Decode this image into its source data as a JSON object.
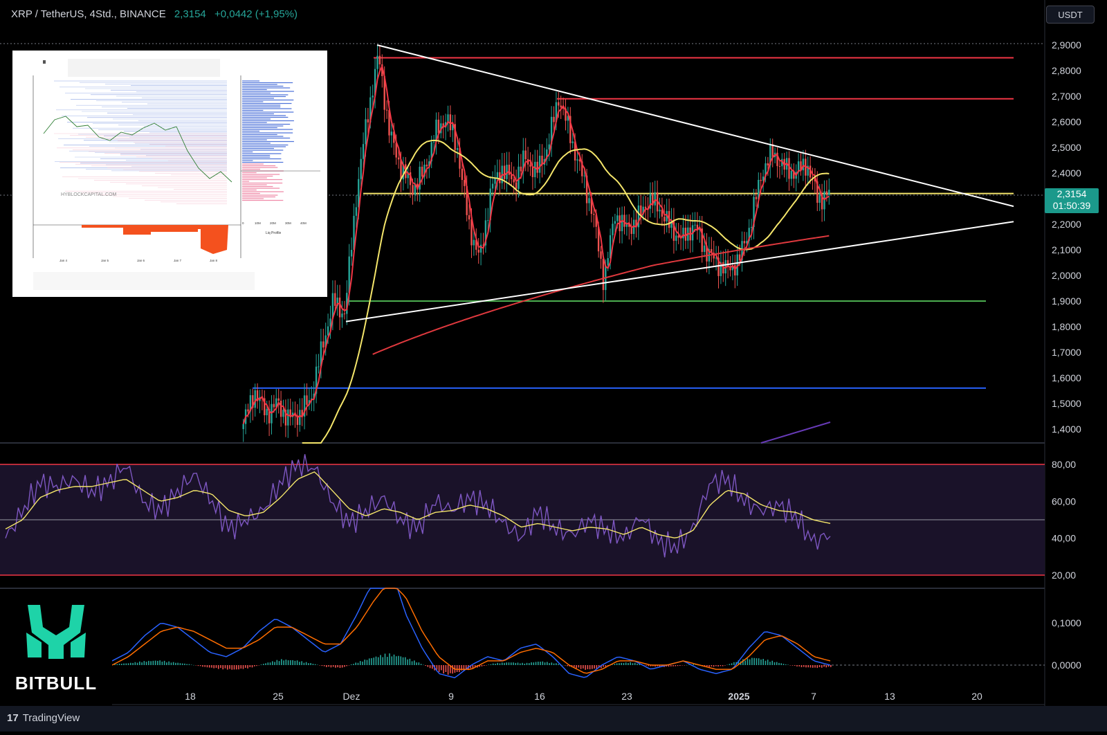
{
  "header": {
    "symbol": "XRP / TetherUS, 4Std., BINANCE",
    "price": "2,3154",
    "change": "+0,0442 (+1,95%)"
  },
  "currency_button": "USDT",
  "last_price_box": {
    "price": "2,3154",
    "countdown": "01:50:39"
  },
  "watermark_logo": {
    "text": "BITBULL",
    "colors": {
      "mark": "#1ed3a8",
      "text": "#ffffff"
    }
  },
  "footer": {
    "brand_glyph": "17",
    "brand": "TradingView"
  },
  "colors": {
    "up": "#26a69a",
    "down": "#ef5350",
    "ma_short": "#f23645",
    "ma_long": "#f5e66b",
    "ma_200": "#e0393e",
    "resistance": "#f23645",
    "support_green": "#4caf50",
    "support_blue": "#2962ff",
    "trendline": "#ffffff",
    "rsi": "#7e57c2",
    "rsi_ma": "#f5e66b",
    "macd": "#2962ff",
    "signal": "#ff6d00"
  },
  "chart_data": [
    {
      "type": "line",
      "panel": "price",
      "x_tick_labels": [
        "18",
        "25",
        "Dez",
        "9",
        "16",
        "23",
        "2025",
        "7",
        "13",
        "20"
      ],
      "y_ticks": [
        "2,9000",
        "2,8000",
        "2,7000",
        "2,6000",
        "2,5000",
        "2,4000",
        "2,2000",
        "2,1000",
        "2,0000",
        "1,9000",
        "1,8000",
        "1,7000",
        "1,6000",
        "1,5000",
        "1,4000"
      ],
      "ylim": [
        1.36,
        2.95
      ],
      "candles_close": [
        1.42,
        1.55,
        1.46,
        1.5,
        1.44,
        1.46,
        1.52,
        1.72,
        1.9,
        1.85,
        2.3,
        2.62,
        2.86,
        2.55,
        2.42,
        2.34,
        2.4,
        2.55,
        2.62,
        2.5,
        2.2,
        2.06,
        2.34,
        2.42,
        2.36,
        2.46,
        2.4,
        2.5,
        2.7,
        2.55,
        2.4,
        2.25,
        1.98,
        2.24,
        2.18,
        2.22,
        2.3,
        2.26,
        2.18,
        2.14,
        2.2,
        2.1,
        2.05,
        2.02,
        2.06,
        2.2,
        2.4,
        2.48,
        2.42,
        2.4,
        2.44,
        2.3,
        2.3154
      ],
      "horizontal_levels": [
        {
          "value": 2.85,
          "color": "red"
        },
        {
          "value": 2.69,
          "color": "red"
        },
        {
          "value": 2.32,
          "color": "yellow"
        },
        {
          "value": 1.9,
          "color": "green"
        },
        {
          "value": 1.56,
          "color": "blue"
        }
      ],
      "trendlines": [
        {
          "from": [
            "Dez 3",
            2.9
          ],
          "to": [
            "Jan 20",
            2.27
          ]
        },
        {
          "from": [
            "Nov 30",
            1.82
          ],
          "to": [
            "Jan 20",
            2.21
          ]
        }
      ]
    },
    {
      "type": "line",
      "panel": "rsi",
      "y_ticks": [
        "80,00",
        "60,00",
        "40,00",
        "20,00"
      ],
      "ylim": [
        15,
        90
      ],
      "overbought": 80,
      "oversold": 20,
      "midline": 50,
      "rsi": [
        40,
        55,
        70,
        68,
        72,
        65,
        70,
        80,
        60,
        55,
        65,
        75,
        60,
        45,
        50,
        55,
        70,
        80,
        78,
        60,
        48,
        55,
        62,
        50,
        45,
        60,
        55,
        62,
        58,
        48,
        40,
        55,
        45,
        42,
        50,
        44,
        40,
        52,
        38,
        35,
        45,
        70,
        72,
        60,
        55,
        58,
        52,
        38,
        42
      ],
      "rsi_ma": [
        45,
        50,
        62,
        66,
        68,
        68,
        70,
        72,
        66,
        60,
        62,
        66,
        64,
        55,
        52,
        54,
        62,
        72,
        76,
        66,
        56,
        52,
        56,
        54,
        50,
        54,
        55,
        58,
        56,
        52,
        46,
        48,
        46,
        44,
        46,
        45,
        42,
        46,
        42,
        40,
        44,
        58,
        66,
        64,
        58,
        55,
        54,
        50,
        48
      ]
    },
    {
      "type": "bar",
      "panel": "macd",
      "y_ticks": [
        "0,1000",
        "0,0000"
      ],
      "ylim": [
        -0.04,
        0.18
      ],
      "histogram": [
        0.002,
        0.004,
        0.008,
        0.01,
        0.006,
        0.002,
        -0.004,
        -0.008,
        -0.01,
        -0.006,
        0.004,
        0.012,
        0.01,
        0.004,
        -0.004,
        -0.006,
        0.006,
        0.016,
        0.024,
        0.018,
        0.006,
        -0.01,
        -0.02,
        -0.012,
        -0.004,
        0.004,
        0.006,
        0.004,
        0.008,
        0.004,
        -0.004,
        -0.01,
        -0.006,
        0.004,
        0.006,
        -0.002,
        -0.004,
        -0.002,
        0.002,
        -0.004,
        -0.002,
        0.01,
        0.016,
        0.01,
        0.002,
        -0.004,
        -0.006,
        -0.004
      ],
      "macd": [
        0.01,
        0.03,
        0.07,
        0.1,
        0.09,
        0.06,
        0.03,
        0.02,
        0.04,
        0.08,
        0.11,
        0.09,
        0.06,
        0.03,
        0.05,
        0.12,
        0.2,
        0.24,
        0.12,
        0.04,
        -0.02,
        -0.03,
        0.0,
        0.02,
        0.01,
        0.04,
        0.05,
        0.02,
        -0.02,
        -0.03,
        0.0,
        0.02,
        0.01,
        -0.01,
        0.0,
        0.01,
        -0.01,
        -0.02,
        -0.01,
        0.04,
        0.08,
        0.07,
        0.04,
        0.01,
        0.0
      ],
      "signal": [
        0.0,
        0.02,
        0.05,
        0.08,
        0.09,
        0.08,
        0.06,
        0.04,
        0.04,
        0.06,
        0.09,
        0.09,
        0.07,
        0.05,
        0.05,
        0.09,
        0.15,
        0.2,
        0.16,
        0.08,
        0.02,
        -0.01,
        -0.01,
        0.01,
        0.01,
        0.03,
        0.04,
        0.03,
        0.0,
        -0.02,
        -0.01,
        0.01,
        0.01,
        0.0,
        0.0,
        0.01,
        0.0,
        -0.01,
        -0.01,
        0.02,
        0.06,
        0.07,
        0.05,
        0.02,
        0.01
      ]
    }
  ],
  "inset": {
    "watermark": "HYBLOCKCAPITAL.COM",
    "x_labels": [
      "Jan 4",
      "Jan 5",
      "Jan 6",
      "Jan 7",
      "Jan 8"
    ],
    "profile_labels": [
      "0",
      "10M",
      "20M",
      "30M",
      "40M"
    ],
    "profile_title": "Liq Profile"
  }
}
